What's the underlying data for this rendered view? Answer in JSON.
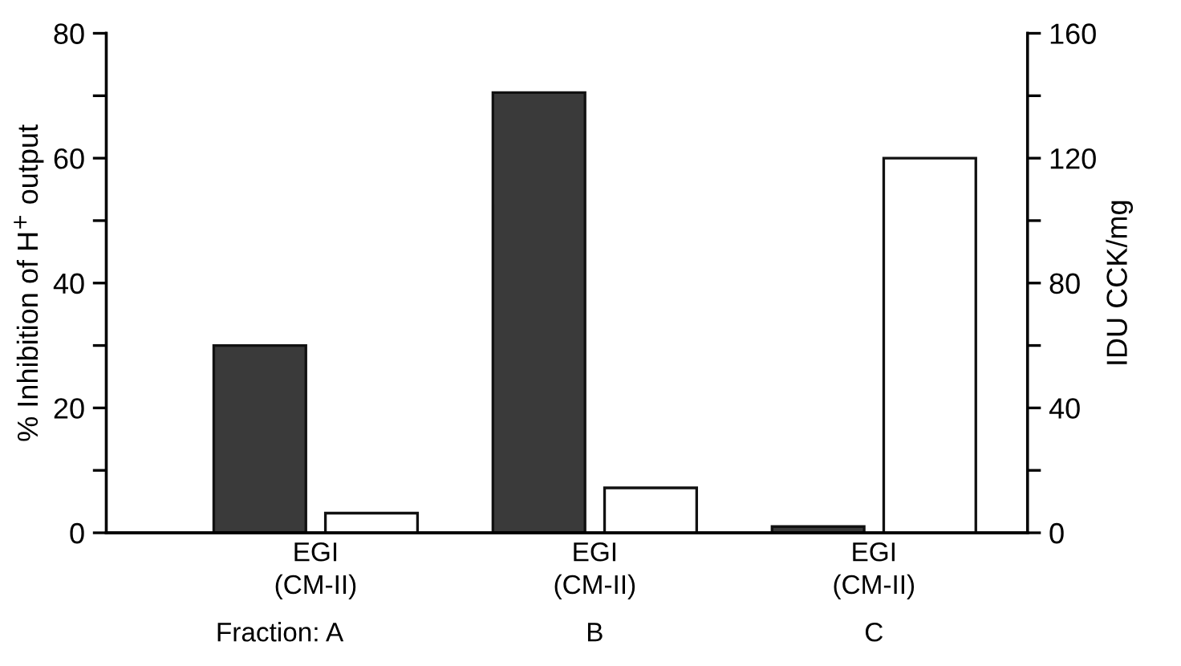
{
  "chart_data": {
    "type": "bar",
    "categories": [
      "EGI\n(CM-II)",
      "EGI\n(CM-II)",
      "EGI\n(CM-II)"
    ],
    "series": [
      {
        "color": "#3a3a3a",
        "values": [
          30,
          70.5,
          1
        ]
      },
      {
        "color": "#ffffff",
        "values": [
          6.3,
          14.4,
          120
        ],
        "axis": "y2"
      }
    ],
    "ylabel": "% Inhibition of H$^{+}$ output",
    "y2label": "IDU CCK/mg",
    "ylim": [
      0,
      80
    ],
    "yticks": [
      0,
      {
        "value": 10,
        "label": null
      },
      20,
      {
        "value": 30,
        "label": null
      },
      40,
      {
        "value": 50,
        "label": null
      },
      60,
      {
        "value": 70,
        "label": null
      },
      80
    ],
    "y2lim": [
      0,
      160
    ],
    "y2ticks": [
      0,
      {
        "value": 20,
        "label": null
      },
      40,
      {
        "value": 60,
        "label": null
      },
      80,
      {
        "value": 100,
        "label": null
      },
      120,
      {
        "value": 140,
        "label": null
      },
      160
    ],
    "annotations": [
      "Fraction: A",
      "B",
      "C"
    ],
    "grid": false,
    "legend": false
  }
}
